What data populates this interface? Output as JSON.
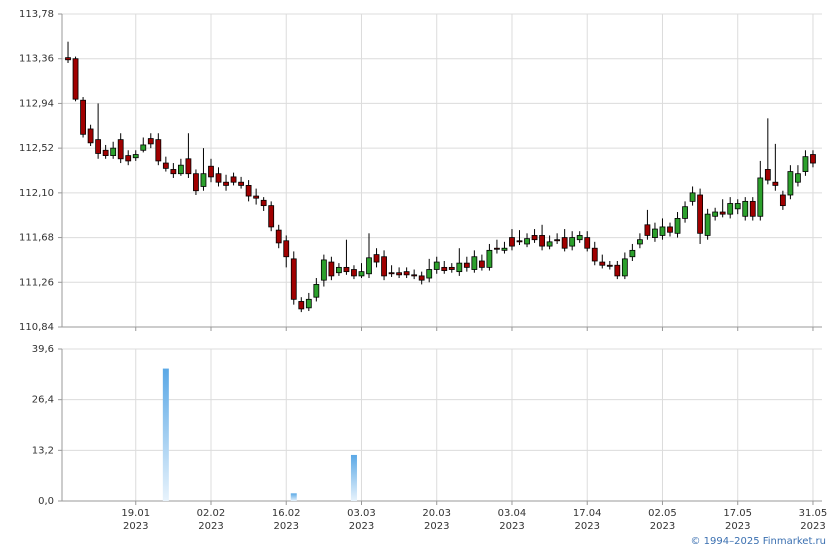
{
  "chart_data": [
    {
      "type": "candlestick",
      "open": [
        113.37,
        113.36,
        112.97,
        112.7,
        112.6,
        112.5,
        112.45,
        112.6,
        112.45,
        112.43,
        112.5,
        112.61,
        112.6,
        112.38,
        112.32,
        112.28,
        112.42,
        112.28,
        112.16,
        112.35,
        112.28,
        112.2,
        112.25,
        112.2,
        112.17,
        112.07,
        112.03,
        111.98,
        111.75,
        111.65,
        111.48,
        111.08,
        111.02,
        111.12,
        111.28,
        111.45,
        111.35,
        111.4,
        111.38,
        111.32,
        111.34,
        111.52,
        111.5,
        111.35,
        111.35,
        111.36,
        111.33,
        111.32,
        111.3,
        111.38,
        111.4,
        111.4,
        111.36,
        111.44,
        111.38,
        111.46,
        111.4,
        111.58,
        111.56,
        111.68,
        111.65,
        111.62,
        111.7,
        111.7,
        111.6,
        111.66,
        111.68,
        111.6,
        111.66,
        111.68,
        111.58,
        111.45,
        111.42,
        111.42,
        111.32,
        111.5,
        111.62,
        111.8,
        111.68,
        111.7,
        111.78,
        111.72,
        111.86,
        112.02,
        112.08,
        111.7,
        111.88,
        111.92,
        111.9,
        111.95,
        111.88,
        112.02,
        111.88,
        112.32,
        112.2,
        112.08,
        112.08,
        112.2,
        112.3,
        112.46
      ],
      "high": [
        113.52,
        113.38,
        113.0,
        112.74,
        112.94,
        112.55,
        112.58,
        112.66,
        112.5,
        112.5,
        112.62,
        112.66,
        112.66,
        112.44,
        112.38,
        112.42,
        112.66,
        112.32,
        112.52,
        112.42,
        112.34,
        112.27,
        112.29,
        112.25,
        112.22,
        112.14,
        112.06,
        112.02,
        111.8,
        111.7,
        111.55,
        111.12,
        111.16,
        111.3,
        111.52,
        111.5,
        111.44,
        111.66,
        111.42,
        111.44,
        111.72,
        111.58,
        111.56,
        111.42,
        111.4,
        111.4,
        111.38,
        111.36,
        111.48,
        111.5,
        111.46,
        111.44,
        111.58,
        111.5,
        111.56,
        111.52,
        111.62,
        111.66,
        111.64,
        111.76,
        111.75,
        111.72,
        111.76,
        111.8,
        111.7,
        111.72,
        111.76,
        111.74,
        111.74,
        111.74,
        111.64,
        111.52,
        111.46,
        111.46,
        111.54,
        111.62,
        111.72,
        111.94,
        111.82,
        111.86,
        111.82,
        111.92,
        112.02,
        112.16,
        112.14,
        111.95,
        111.96,
        112.04,
        112.06,
        112.04,
        112.06,
        112.06,
        112.4,
        112.8,
        112.56,
        112.12,
        112.36,
        112.36,
        112.5,
        112.5
      ],
      "low": [
        113.32,
        112.96,
        112.62,
        112.54,
        112.42,
        112.42,
        112.42,
        112.38,
        112.36,
        112.4,
        112.48,
        112.52,
        112.36,
        112.3,
        112.24,
        112.26,
        112.24,
        112.08,
        112.12,
        112.2,
        112.16,
        112.12,
        112.17,
        112.14,
        112.02,
        111.99,
        111.93,
        111.74,
        111.58,
        111.4,
        111.05,
        110.98,
        110.99,
        111.08,
        111.22,
        111.28,
        111.32,
        111.33,
        111.29,
        111.3,
        111.3,
        111.4,
        111.28,
        111.31,
        111.3,
        111.3,
        111.29,
        111.24,
        111.26,
        111.34,
        111.34,
        111.35,
        111.32,
        111.36,
        111.35,
        111.37,
        111.37,
        111.53,
        111.53,
        111.56,
        111.61,
        111.59,
        111.63,
        111.56,
        111.57,
        111.62,
        111.55,
        111.56,
        111.63,
        111.55,
        111.42,
        111.39,
        111.38,
        111.29,
        111.29,
        111.46,
        111.58,
        111.66,
        111.64,
        111.66,
        111.69,
        111.68,
        111.82,
        111.98,
        111.62,
        111.66,
        111.84,
        111.87,
        111.86,
        111.9,
        111.84,
        111.84,
        111.84,
        112.18,
        112.12,
        111.94,
        112.04,
        112.16,
        112.26,
        112.34
      ],
      "close": [
        113.35,
        112.98,
        112.65,
        112.57,
        112.47,
        112.45,
        112.52,
        112.42,
        112.4,
        112.46,
        112.55,
        112.56,
        112.4,
        112.33,
        112.28,
        112.36,
        112.28,
        112.12,
        112.28,
        112.25,
        112.2,
        112.17,
        112.2,
        112.17,
        112.07,
        112.05,
        111.98,
        111.78,
        111.63,
        111.5,
        111.1,
        111.01,
        111.1,
        111.24,
        111.47,
        111.32,
        111.4,
        111.36,
        111.32,
        111.36,
        111.49,
        111.45,
        111.32,
        111.34,
        111.33,
        111.33,
        111.32,
        111.28,
        111.38,
        111.45,
        111.37,
        111.38,
        111.44,
        111.4,
        111.5,
        111.4,
        111.56,
        111.57,
        111.58,
        111.6,
        111.64,
        111.67,
        111.66,
        111.6,
        111.64,
        111.65,
        111.58,
        111.68,
        111.7,
        111.58,
        111.46,
        111.42,
        111.41,
        111.32,
        111.48,
        111.56,
        111.66,
        111.7,
        111.76,
        111.78,
        111.73,
        111.86,
        111.97,
        112.1,
        111.72,
        111.9,
        111.92,
        111.9,
        112.0,
        112.0,
        112.02,
        111.88,
        112.24,
        112.22,
        112.17,
        111.98,
        112.3,
        112.28,
        112.44,
        112.38
      ],
      "xlim": [
        -0.8,
        100.2
      ],
      "ylim": [
        110.84,
        113.78
      ],
      "yticks": [
        {
          "value": 110.84,
          "label": "110,84"
        },
        {
          "value": 111.26,
          "label": "111,26"
        },
        {
          "value": 111.68,
          "label": "111,68"
        },
        {
          "value": 112.1,
          "label": "112,10"
        },
        {
          "value": 112.52,
          "label": "112,52"
        },
        {
          "value": 112.94,
          "label": "112,94"
        },
        {
          "value": 113.36,
          "label": "113,36"
        },
        {
          "value": 113.78,
          "label": "113,78"
        }
      ],
      "up_color": "#2ca02c",
      "down_color": "#a00000",
      "grid": true
    },
    {
      "type": "bar",
      "values": [
        0,
        0,
        0,
        0,
        0,
        0,
        0,
        0,
        0,
        0,
        0,
        0,
        0,
        34.5,
        0,
        0,
        0,
        0,
        0,
        0,
        0,
        0,
        0,
        0,
        0,
        0,
        0,
        0,
        0,
        0,
        2.0,
        0,
        0,
        0,
        0,
        0,
        0,
        0,
        12.0,
        0,
        0,
        0,
        0,
        0,
        0,
        0,
        0,
        0,
        0,
        0,
        0,
        0,
        0,
        0,
        0,
        0,
        0,
        0,
        0,
        0,
        0,
        0,
        0,
        0,
        0,
        0,
        0,
        0,
        0,
        0,
        0,
        0,
        0,
        0,
        0,
        0,
        0,
        0,
        0,
        0,
        0,
        0,
        0,
        0,
        0,
        0,
        0,
        0,
        0,
        0,
        0,
        0,
        0,
        0,
        0,
        0,
        0,
        0,
        0,
        0
      ],
      "xlim": [
        -0.8,
        100.2
      ],
      "ylim": [
        0,
        39.6
      ],
      "yticks": [
        {
          "value": 0,
          "label": "0,0"
        },
        {
          "value": 13.2,
          "label": "13,2"
        },
        {
          "value": 26.4,
          "label": "26,4"
        },
        {
          "value": 39.6,
          "label": "39,6"
        }
      ],
      "xticks": [
        {
          "value": 9,
          "label": [
            "19.01",
            "2023"
          ]
        },
        {
          "value": 19,
          "label": [
            "02.02",
            "2023"
          ]
        },
        {
          "value": 29,
          "label": [
            "16.02",
            "2023"
          ]
        },
        {
          "value": 39,
          "label": [
            "03.03",
            "2023"
          ]
        },
        {
          "value": 49,
          "label": [
            "20.03",
            "2023"
          ]
        },
        {
          "value": 59,
          "label": [
            "03.04",
            "2023"
          ]
        },
        {
          "value": 69,
          "label": [
            "17.04",
            "2023"
          ]
        },
        {
          "value": 79,
          "label": [
            "02.05",
            "2023"
          ]
        },
        {
          "value": 89,
          "label": [
            "17.05",
            "2023"
          ]
        },
        {
          "value": 99,
          "label": [
            "31.05",
            "2023"
          ]
        }
      ],
      "color": "#5aa8e6",
      "grid": true
    }
  ],
  "footer": "© 1994–2025 Finmarket.ru"
}
